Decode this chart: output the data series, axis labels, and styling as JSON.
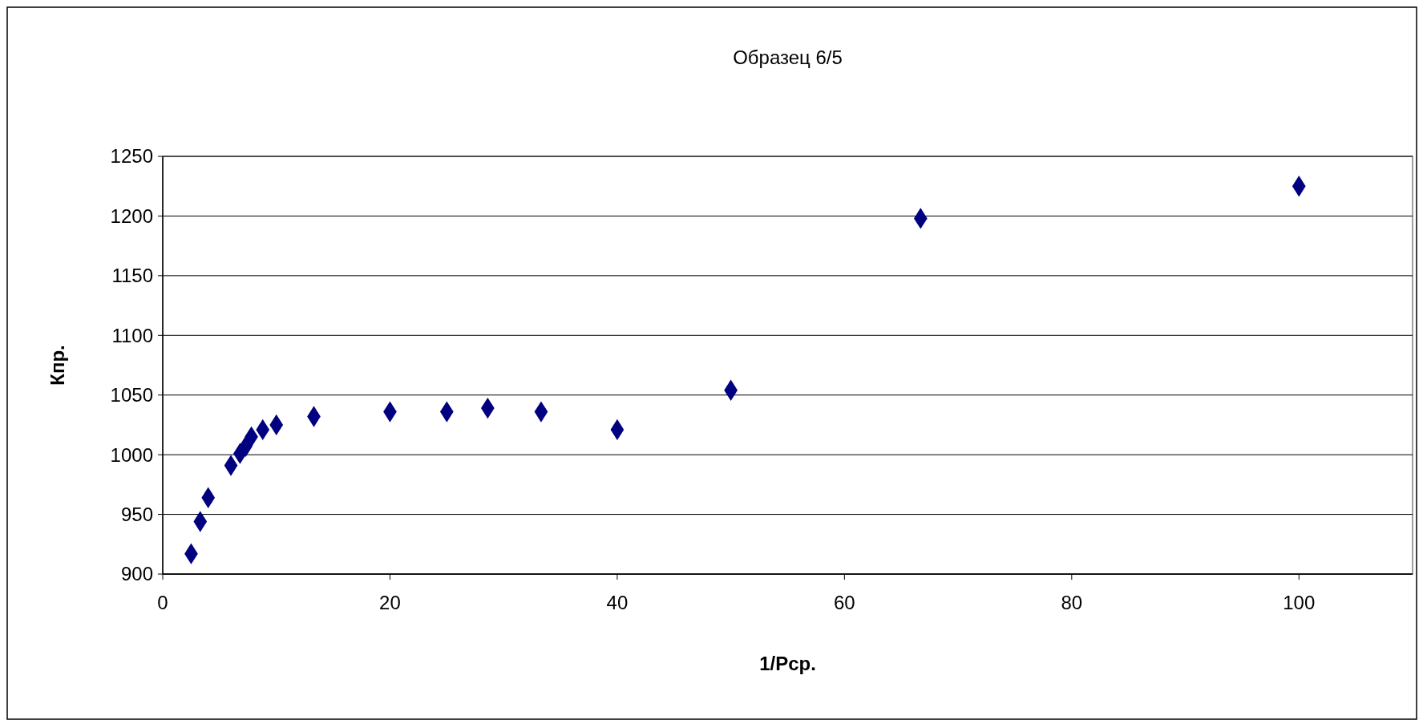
{
  "chart_data": {
    "type": "scatter",
    "title": "Образец 6/5",
    "xlabel": "1/Pср.",
    "ylabel": "Кпр.",
    "x": [
      2.5,
      3.3,
      4,
      6,
      6.8,
      7.3,
      7.8,
      8.8,
      10,
      13.3,
      20,
      25,
      28.6,
      33.3,
      40,
      50,
      66.7,
      100
    ],
    "series": [
      {
        "color": "#000080",
        "values": [
          917,
          944,
          964,
          991,
          1001,
          1007,
          1015,
          1021,
          1025,
          1032,
          1036,
          1036,
          1039,
          1036,
          1021,
          1054,
          1198,
          1225
        ]
      }
    ],
    "xlim": [
      0,
      110
    ],
    "xticks": [
      0,
      20,
      40,
      60,
      80,
      100
    ],
    "ylim": [
      900,
      1250
    ],
    "yticks": [
      900,
      950,
      1000,
      1050,
      1100,
      1150,
      1200,
      1250
    ],
    "grid": "y",
    "marker": "diamond"
  }
}
